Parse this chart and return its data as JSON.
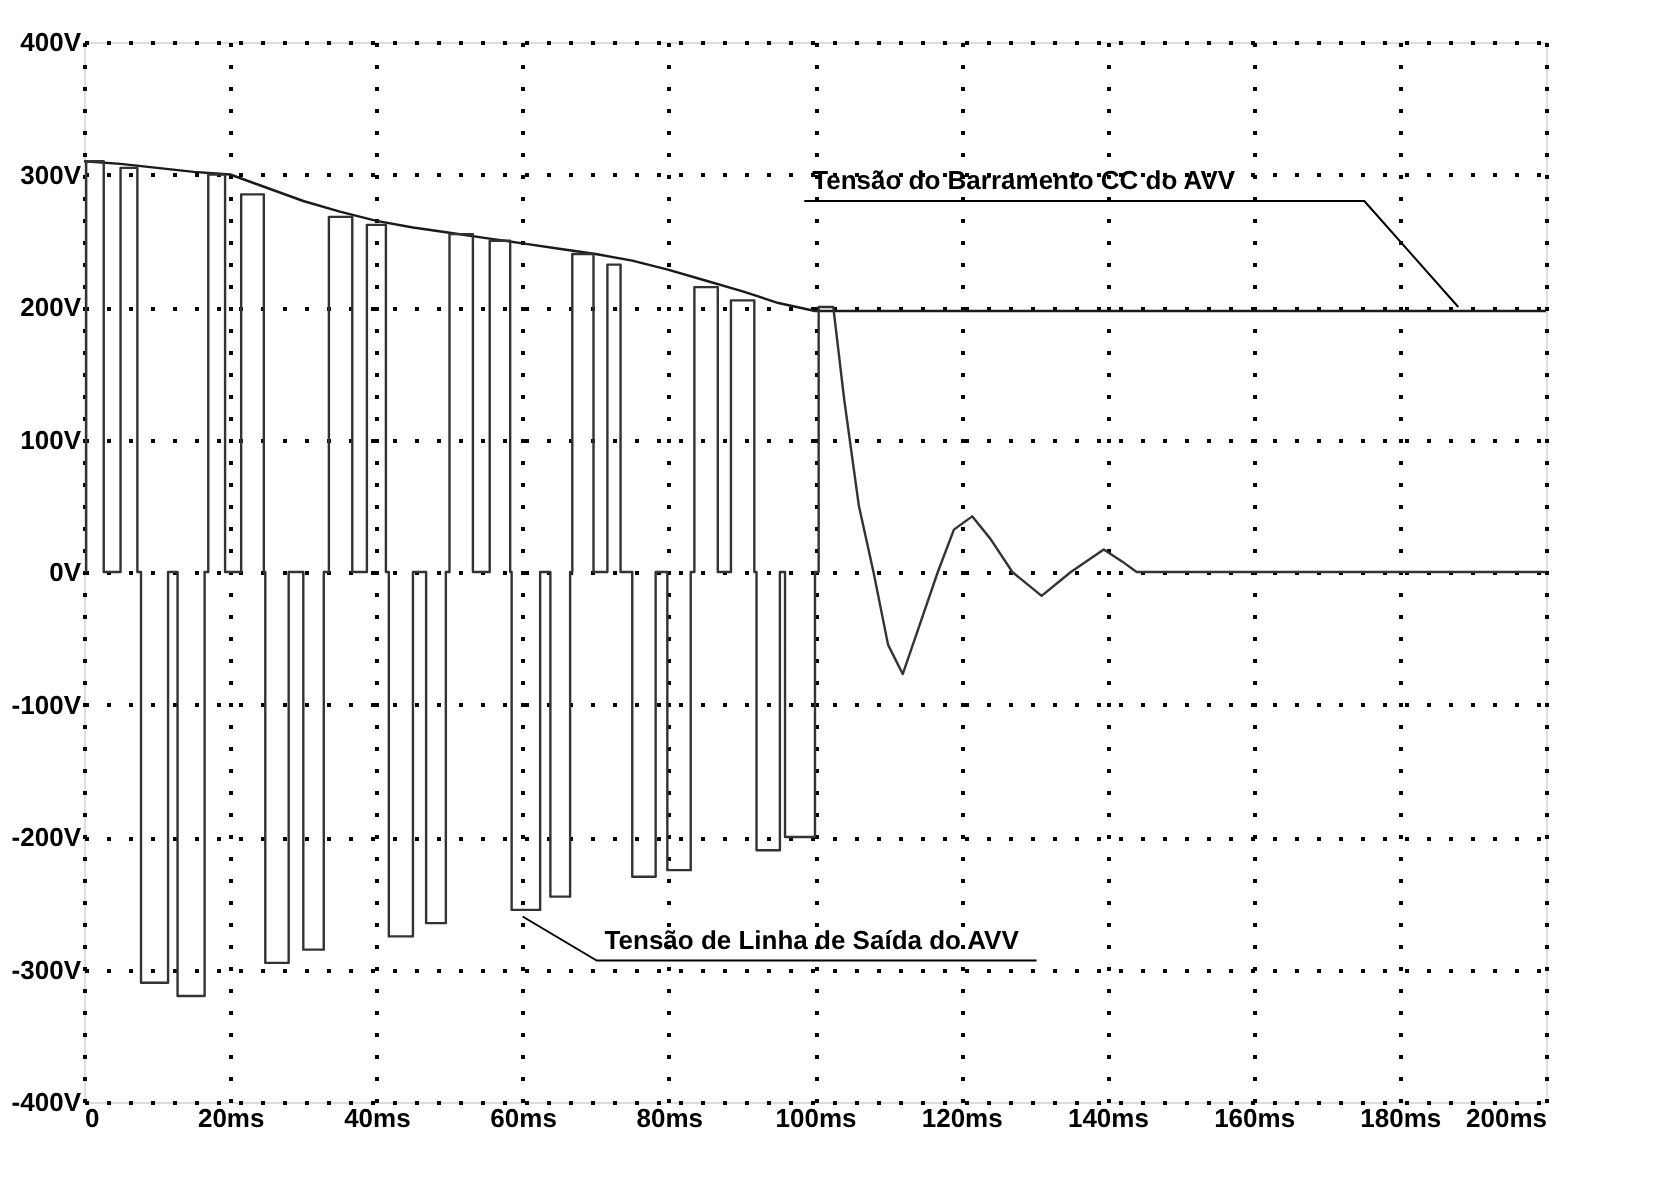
{
  "chart_data": {
    "type": "line",
    "xlim": [
      0,
      200
    ],
    "ylim": [
      -400,
      400
    ],
    "xticks": [
      0,
      {
        "value": 20,
        "label": "20ms"
      },
      {
        "value": 40,
        "label": "40ms"
      },
      {
        "value": 60,
        "label": "60ms"
      },
      {
        "value": 80,
        "label": "80ms"
      },
      {
        "value": 100,
        "label": "100ms"
      },
      {
        "value": 120,
        "label": "120ms"
      },
      {
        "value": 140,
        "label": "140ms"
      },
      {
        "value": 160,
        "label": "160ms"
      },
      {
        "value": 180,
        "label": "180ms"
      },
      {
        "value": 200,
        "label": "200ms"
      }
    ],
    "yticks": [
      {
        "value": -400,
        "label": "-400V"
      },
      {
        "value": -300,
        "label": "-300V"
      },
      {
        "value": -200,
        "label": "-200V"
      },
      {
        "value": -100,
        "label": "-100V"
      },
      {
        "value": 0,
        "label": "0V"
      },
      {
        "value": 100,
        "label": "100V"
      },
      {
        "value": 200,
        "label": "200V"
      },
      {
        "value": 300,
        "label": "300V"
      },
      {
        "value": 400,
        "label": "400V"
      }
    ],
    "grid": true,
    "marker": "none",
    "line_style": "solid",
    "series": [
      {
        "color": "#1a1a1a",
        "x": [
          0,
          5,
          10,
          15,
          20,
          25,
          30,
          35,
          40,
          45,
          50,
          55,
          60,
          65,
          70,
          75,
          80,
          85,
          90,
          95,
          100,
          150,
          200
        ],
        "values": [
          310,
          308,
          305,
          302,
          300,
          290,
          280,
          272,
          265,
          260,
          256,
          252,
          248,
          244,
          240,
          235,
          228,
          220,
          212,
          203,
          197,
          197,
          197
        ]
      },
      {
        "color": "#333333",
        "x": [
          0.3,
          0.3,
          2.7,
          2.7,
          5,
          5,
          7.3,
          7.3,
          7.8,
          7.8,
          11.5,
          11.5,
          12.8,
          12.8,
          16.5,
          16.5,
          17,
          17,
          19.3,
          19.3,
          21.5,
          21.5,
          24.6,
          24.6,
          24.8,
          24.8,
          28,
          28,
          30,
          30,
          32.8,
          32.8,
          33.5,
          33.5,
          36.7,
          36.7,
          38.7,
          38.7,
          41.3,
          41.3,
          41.7,
          41.7,
          45,
          45,
          46.8,
          46.8,
          49.5,
          49.5,
          50,
          50,
          53.2,
          53.2,
          55.5,
          55.5,
          58.3,
          58.3,
          58.5,
          58.5,
          62.4,
          62.4,
          63.8,
          63.8,
          66.5,
          66.5,
          66.8,
          66.8,
          69.7,
          69.7,
          71.6,
          71.6,
          73.4,
          73.4,
          75,
          75,
          78.2,
          78.2,
          79.8,
          79.8,
          83,
          83,
          83.5,
          83.5,
          86.7,
          86.7,
          88.5,
          88.5,
          91.7,
          91.7,
          92,
          92,
          95.2,
          95.2,
          95.9,
          95.9,
          100,
          100,
          100.5,
          100.5,
          102.5,
          104,
          106,
          108,
          110,
          112,
          114,
          116.8,
          119,
          121.5,
          124,
          127,
          131,
          135,
          139.5,
          142,
          144,
          200
        ],
        "values": [
          0,
          310,
          310,
          0,
          0,
          305,
          305,
          0,
          0,
          -310,
          -310,
          0,
          0,
          -320,
          -320,
          0,
          0,
          300,
          300,
          0,
          0,
          285,
          285,
          0,
          0,
          -295,
          -295,
          0,
          0,
          -285,
          -285,
          0,
          0,
          268,
          268,
          0,
          0,
          262,
          262,
          0,
          0,
          -275,
          -275,
          0,
          0,
          -265,
          -265,
          0,
          0,
          255,
          255,
          0,
          0,
          250,
          250,
          0,
          0,
          -255,
          -255,
          0,
          0,
          -245,
          -245,
          0,
          0,
          240,
          240,
          0,
          0,
          232,
          232,
          0,
          0,
          -230,
          -230,
          0,
          0,
          -225,
          -225,
          0,
          0,
          215,
          215,
          0,
          0,
          205,
          205,
          0,
          0,
          -210,
          -210,
          0,
          0,
          -200,
          -200,
          0,
          0,
          200,
          200,
          130,
          50,
          0,
          -55,
          -77,
          -45,
          0,
          32,
          42,
          25,
          0,
          -18,
          0,
          17,
          8,
          0,
          0
        ]
      }
    ],
    "annotations": [
      {
        "text": "Tensão do Barramento CC do AVV",
        "x": 188,
        "y": 200
      },
      {
        "text": "Tensão de Linha de Saída do AVV",
        "x": 60,
        "y": -260
      }
    ]
  }
}
